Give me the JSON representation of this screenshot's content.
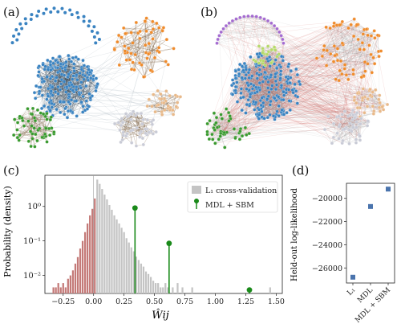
{
  "panels": {
    "a": "(a)",
    "b": "(b)",
    "c": "(c)",
    "d": "(d)"
  },
  "colors": {
    "blue": "#3a83c1",
    "orange": "#ef8b2c",
    "green": "#3a9a2f",
    "tan": "#e8b98a",
    "lightgray": "#c9cbd6",
    "purple": "#a46bd0",
    "lightgreen": "#b6d96a",
    "red": "#c4302b",
    "rosy": "#c47a78",
    "histgray": "#c4c4c4",
    "stem": "#1a8a1a",
    "point": "#4a74ad"
  },
  "chart_data": [
    {
      "type": "bar",
      "title": "",
      "xlabel": "Ŵij",
      "ylabel": "Probability (density)",
      "yscale": "log",
      "xlim": [
        -0.4,
        1.55
      ],
      "ylim": [
        0.003,
        8
      ],
      "xticks": [
        "−0.25",
        "0.00",
        "0.25",
        "0.50",
        "0.75",
        "1.00",
        "1.25",
        "1.50"
      ],
      "xtick_values": [
        -0.25,
        0,
        0.25,
        0.5,
        0.75,
        1.0,
        1.25,
        1.5
      ],
      "yticks": [
        "10⁰",
        "10⁻¹",
        "10⁻²"
      ],
      "ytick_values": [
        1,
        0.1,
        0.01
      ],
      "legend": {
        "placement": "top-right",
        "entries": [
          "L₁ cross-validation",
          "MDL + SBM"
        ]
      },
      "bin_width": 0.02,
      "bins": [
        [
          -0.34,
          0.0045
        ],
        [
          -0.32,
          0.0045
        ],
        [
          -0.3,
          0.006
        ],
        [
          -0.28,
          0.0045
        ],
        [
          -0.26,
          0.006
        ],
        [
          -0.24,
          0.0045
        ],
        [
          -0.22,
          0.008
        ],
        [
          -0.2,
          0.01
        ],
        [
          -0.18,
          0.014
        ],
        [
          -0.16,
          0.022
        ],
        [
          -0.14,
          0.034
        ],
        [
          -0.12,
          0.06
        ],
        [
          -0.1,
          0.1
        ],
        [
          -0.08,
          0.18
        ],
        [
          -0.06,
          0.32
        ],
        [
          -0.04,
          0.55
        ],
        [
          -0.02,
          0.85
        ],
        [
          0.0,
          1.7
        ],
        [
          0.02,
          6.0
        ],
        [
          0.04,
          4.5
        ],
        [
          0.06,
          3.2
        ],
        [
          0.08,
          2.2
        ],
        [
          0.1,
          1.6
        ],
        [
          0.12,
          1.1
        ],
        [
          0.14,
          0.8
        ],
        [
          0.16,
          0.55
        ],
        [
          0.18,
          0.42
        ],
        [
          0.2,
          0.32
        ],
        [
          0.22,
          0.24
        ],
        [
          0.24,
          0.18
        ],
        [
          0.26,
          0.12
        ],
        [
          0.28,
          0.09
        ],
        [
          0.3,
          0.065
        ],
        [
          0.32,
          0.05
        ],
        [
          0.34,
          0.035
        ],
        [
          0.36,
          0.028
        ],
        [
          0.38,
          0.022
        ],
        [
          0.4,
          0.018
        ],
        [
          0.42,
          0.013
        ],
        [
          0.44,
          0.011
        ],
        [
          0.46,
          0.009
        ],
        [
          0.48,
          0.007
        ],
        [
          0.5,
          0.006
        ],
        [
          0.52,
          0.006
        ],
        [
          0.54,
          0.0045
        ],
        [
          0.56,
          0.0045
        ],
        [
          0.58,
          0.006
        ],
        [
          0.6,
          0.0045
        ],
        [
          0.64,
          0.0045
        ],
        [
          0.68,
          0.006
        ],
        [
          0.72,
          0.0045
        ],
        [
          0.8,
          0.0045
        ],
        [
          1.44,
          0.0045
        ]
      ],
      "stems": [
        {
          "x": 0.34,
          "y": 0.9
        },
        {
          "x": 0.62,
          "y": 0.085
        },
        {
          "x": 1.28,
          "y": 0.0038
        }
      ]
    },
    {
      "type": "scatter",
      "title": "",
      "xlabel": "",
      "ylabel": "Held-out log-likelihood",
      "ylim": [
        -27300,
        -18700
      ],
      "categories": [
        "L₁",
        "MDL",
        "MDL + SBM"
      ],
      "yticks": [
        "−20000",
        "−22000",
        "−24000",
        "−26000"
      ],
      "ytick_values": [
        -20000,
        -22000,
        -24000,
        -26000
      ],
      "values": [
        -26800,
        -20700,
        -19200
      ],
      "errors": [
        150,
        150,
        150
      ]
    }
  ]
}
